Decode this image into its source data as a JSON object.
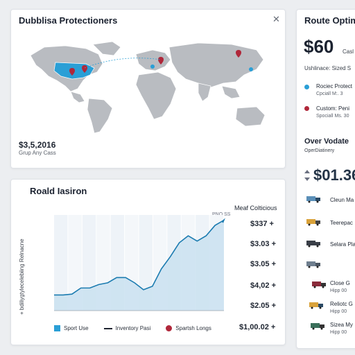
{
  "map_card": {
    "title": "Dubblisa Protectioners",
    "close_icon": "close-icon",
    "value": "$3,5,2016",
    "subtitle": "Grup Any Cass"
  },
  "chart_card": {
    "title": "Roald Iasiron",
    "y_axis_label": "+ bdiliygtylecelebiing Relnacne",
    "top_legend": "PNO SS",
    "right_title": "Meaf Colticious",
    "legend": [
      {
        "label": "Sport Use",
        "kind": "box",
        "color": "#2a9fd6"
      },
      {
        "label": "Inventory Pasi",
        "kind": "line",
        "color": "#1d2430"
      },
      {
        "label": "Spartsh Longs",
        "kind": "dot",
        "color": "#b0273a"
      }
    ]
  },
  "prices": [
    "$337 +",
    "$3.03 +",
    "$3.05 +",
    "$4,02 +",
    "$2.05 +",
    "$1,00.02 +"
  ],
  "route_card": {
    "title": "Route Optimi",
    "big_value": "$60",
    "big_suffix": "Casl",
    "line1": "Ushlinace: Sized S",
    "items": [
      {
        "title": "Rociec Protect",
        "sub": "Cpciall M:. 3",
        "color": "#2a9fd6"
      },
      {
        "title": "Custom: Peni",
        "sub": "Spociall Ms. 30",
        "color": "#b0273a"
      }
    ],
    "section": "Over Vodate",
    "section_sub": "OperDiatinery",
    "big_value2": "$01.36",
    "vehicles": [
      {
        "label": "Cleun Ma",
        "sub": ""
      },
      {
        "label": "Teerepac",
        "sub": ""
      },
      {
        "label": "Selara Pla",
        "sub": ""
      },
      {
        "label": "",
        "sub": ""
      },
      {
        "label": "Close G",
        "sub": "Hipp 00"
      },
      {
        "label": "Reliotc G",
        "sub": "Hipp 00"
      },
      {
        "label": "Sizea My",
        "sub": "Hipp 00"
      }
    ]
  },
  "chart_data": {
    "type": "area",
    "title": "Roald Iasiron",
    "ylabel": "+ bdiliygtylecelebiing Relnacne",
    "series": [
      {
        "name": "Inventory Pasi",
        "values": [
          0.9,
          0.9,
          0.95,
          1.3,
          1.3,
          1.5,
          1.6,
          1.9,
          1.9,
          1.6,
          1.2,
          1.4,
          2.4,
          3.1,
          3.9,
          4.3,
          4.0,
          4.3,
          4.9,
          5.2
        ]
      }
    ],
    "ylim": [
      0,
      5.5
    ]
  }
}
